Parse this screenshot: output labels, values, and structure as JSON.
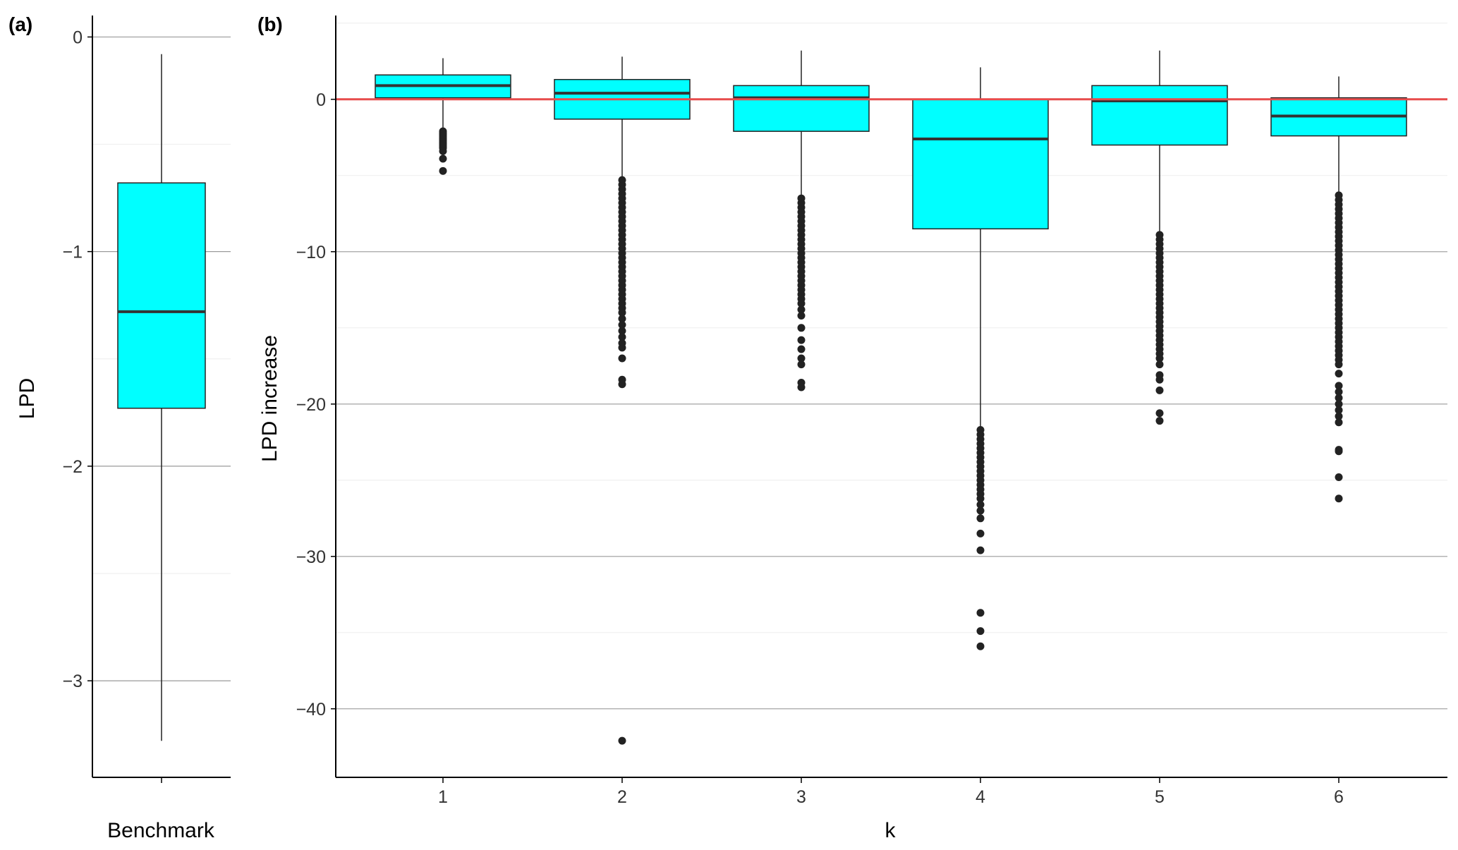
{
  "chart_data": [
    {
      "type": "box",
      "panel_label": "(a)",
      "xlabel": "Benchmark",
      "ylabel": "LPD",
      "ylim": [
        -3.45,
        0.1
      ],
      "yticks": [
        0,
        -1,
        -2,
        -3
      ],
      "ytick_labels": [
        "0",
        "−1",
        "−2",
        "−3"
      ],
      "grid": true,
      "boxes": [
        {
          "category": "",
          "whisker_low": -3.28,
          "q1": -1.73,
          "median": -1.28,
          "q3": -0.68,
          "whisker_high": -0.08,
          "outliers": []
        }
      ]
    },
    {
      "type": "box",
      "panel_label": "(b)",
      "xlabel": "k",
      "ylabel": "LPD increase",
      "ylim": [
        -44.5,
        5.5
      ],
      "yticks": [
        0,
        -10,
        -20,
        -30,
        -40
      ],
      "ytick_labels": [
        "0",
        "−10",
        "−20",
        "−30",
        "−40"
      ],
      "grid": true,
      "reference_line": {
        "y": 0,
        "color": "#e74c4c"
      },
      "categories": [
        "1",
        "2",
        "3",
        "4",
        "5",
        "6"
      ],
      "boxes": [
        {
          "category": "1",
          "whisker_low": -2.0,
          "q1": 0.1,
          "median": 0.9,
          "q3": 1.6,
          "whisker_high": 2.7,
          "outliers": [
            -2.1,
            -2.2,
            -2.3,
            -2.4,
            -2.5,
            -2.6,
            -2.7,
            -2.8,
            -2.9,
            -3.0,
            -3.1,
            -3.2,
            -3.4,
            -3.9,
            -4.7
          ]
        },
        {
          "category": "2",
          "whisker_low": -5.2,
          "q1": -1.3,
          "median": 0.4,
          "q3": 1.3,
          "whisker_high": 2.8,
          "outliers": [
            -5.3,
            -5.6,
            -5.9,
            -6.2,
            -6.5,
            -6.8,
            -7.1,
            -7.4,
            -7.7,
            -8.0,
            -8.3,
            -8.6,
            -8.9,
            -9.2,
            -9.5,
            -9.8,
            -10.1,
            -10.4,
            -10.7,
            -11.0,
            -11.3,
            -11.6,
            -11.9,
            -12.2,
            -12.5,
            -12.8,
            -13.1,
            -13.4,
            -13.7,
            -14.0,
            -14.4,
            -14.8,
            -15.2,
            -15.6,
            -16.0,
            -16.3,
            -17.0,
            -18.4,
            -18.7,
            -42.1
          ]
        },
        {
          "category": "3",
          "whisker_low": -6.4,
          "q1": -2.1,
          "median": 0.1,
          "q3": 0.9,
          "whisker_high": 3.2,
          "outliers": [
            -6.5,
            -6.8,
            -7.1,
            -7.4,
            -7.7,
            -8.0,
            -8.3,
            -8.6,
            -8.9,
            -9.2,
            -9.5,
            -9.8,
            -10.1,
            -10.4,
            -10.7,
            -11.0,
            -11.3,
            -11.6,
            -11.9,
            -12.2,
            -12.5,
            -12.8,
            -13.1,
            -13.4,
            -13.8,
            -14.2,
            -15.0,
            -15.8,
            -16.4,
            -17.0,
            -17.4,
            -18.6,
            -18.9
          ]
        },
        {
          "category": "4",
          "whisker_low": -21.5,
          "q1": -8.5,
          "median": -2.6,
          "q3": 0.0,
          "whisker_high": 2.1,
          "outliers": [
            -21.7,
            -22.0,
            -22.3,
            -22.6,
            -22.9,
            -23.2,
            -23.5,
            -23.8,
            -24.1,
            -24.4,
            -24.7,
            -25.0,
            -25.3,
            -25.6,
            -25.9,
            -26.2,
            -26.6,
            -27.0,
            -27.5,
            -28.5,
            -29.6,
            -33.7,
            -34.9,
            -35.9
          ]
        },
        {
          "category": "5",
          "whisker_low": -8.8,
          "q1": -3.0,
          "median": -0.1,
          "q3": 0.9,
          "whisker_high": 3.2,
          "outliers": [
            -8.9,
            -9.2,
            -9.5,
            -9.8,
            -10.1,
            -10.4,
            -10.7,
            -11.0,
            -11.3,
            -11.6,
            -11.9,
            -12.2,
            -12.5,
            -12.8,
            -13.1,
            -13.4,
            -13.7,
            -14.0,
            -14.3,
            -14.6,
            -14.9,
            -15.2,
            -15.5,
            -15.8,
            -16.1,
            -16.4,
            -16.7,
            -17.0,
            -17.4,
            -18.1,
            -18.4,
            -19.1,
            -20.6,
            -21.1
          ]
        },
        {
          "category": "6",
          "whisker_low": -6.2,
          "q1": -2.4,
          "median": -1.1,
          "q3": 0.1,
          "whisker_high": 1.5,
          "outliers": [
            -6.3,
            -6.6,
            -6.9,
            -7.2,
            -7.5,
            -7.8,
            -8.1,
            -8.4,
            -8.7,
            -9.0,
            -9.3,
            -9.6,
            -9.9,
            -10.2,
            -10.5,
            -10.8,
            -11.1,
            -11.4,
            -11.7,
            -12.0,
            -12.3,
            -12.6,
            -12.9,
            -13.2,
            -13.5,
            -13.8,
            -14.1,
            -14.4,
            -14.7,
            -15.0,
            -15.3,
            -15.6,
            -15.9,
            -16.2,
            -16.5,
            -16.8,
            -17.1,
            -17.4,
            -18.0,
            -18.8,
            -19.2,
            -19.6,
            -20.0,
            -20.4,
            -20.8,
            -21.2,
            -23.0,
            -23.1,
            -24.8,
            -26.2
          ]
        }
      ]
    }
  ],
  "colors": {
    "box_fill": "#00ffff",
    "box_stroke": "#222222",
    "median": "#333333",
    "outlier": "#222222",
    "grid_major": "#9a9a9a",
    "grid_minor": "#eeeeee",
    "reference_line": "#e74c4c"
  }
}
